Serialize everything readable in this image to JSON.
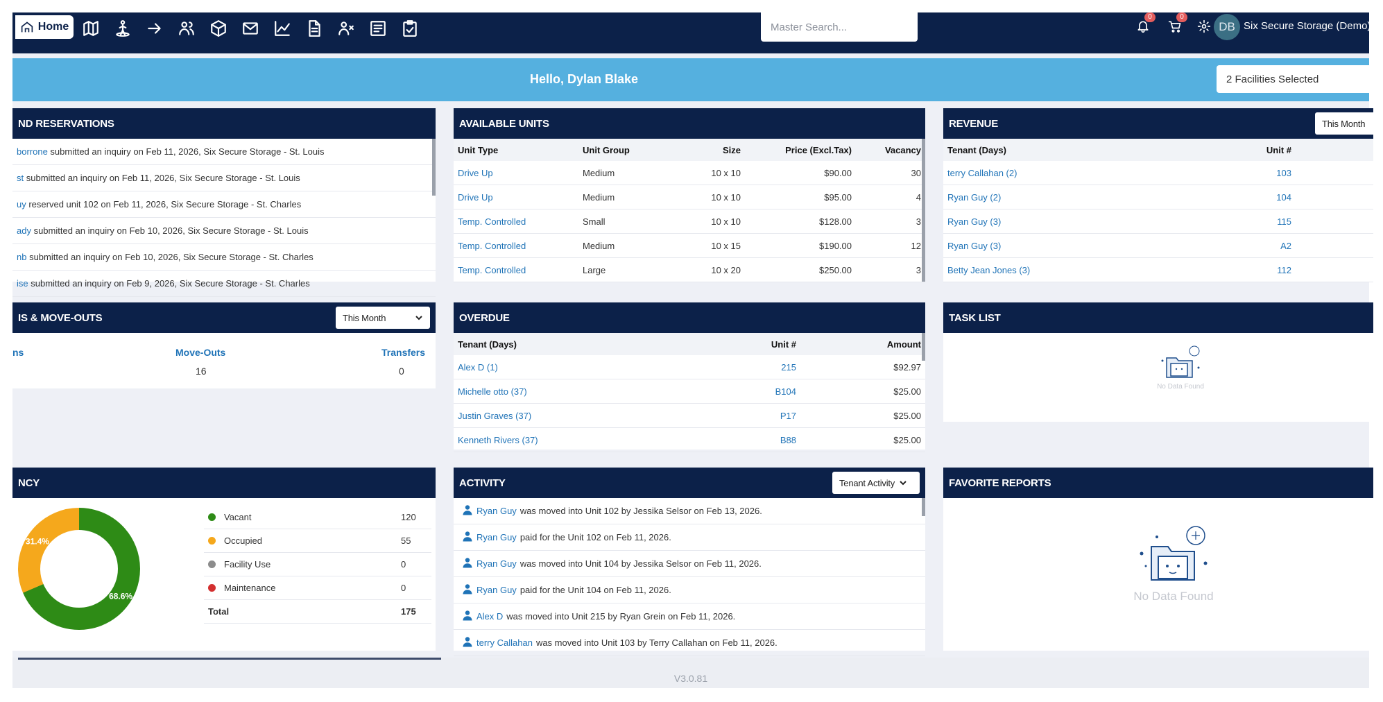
{
  "nav": {
    "home_label": "Home",
    "search_placeholder": "Master Search...",
    "notifications_count": "0",
    "cart_count": "0",
    "avatar_initials": "DB",
    "org_name": "Six Secure Storage (Demo)"
  },
  "hello": {
    "greeting": "Hello, Dylan Blake",
    "facility_select": "2 Facilities Selected"
  },
  "reservations": {
    "title": "ND RESERVATIONS",
    "rows": [
      {
        "name": "borrone",
        "text": " submitted an inquiry on Feb 11, 2026, Six Secure Storage - St. Louis"
      },
      {
        "name": "st",
        "text": " submitted an inquiry on Feb 11, 2026, Six Secure Storage - St. Louis"
      },
      {
        "name": "uy",
        "text": " reserved unit 102 on Feb 11, 2026, Six Secure Storage - St. Charles"
      },
      {
        "name": "ady",
        "text": " submitted an inquiry on Feb 10, 2026, Six Secure Storage - St. Louis"
      },
      {
        "name": "nb",
        "text": " submitted an inquiry on Feb 10, 2026, Six Secure Storage - St. Charles"
      },
      {
        "name": "ise",
        "text": " submitted an inquiry on Feb 9, 2026, Six Secure Storage - St. Charles"
      }
    ]
  },
  "available_units": {
    "title": "AVAILABLE UNITS",
    "headers": [
      "Unit Type",
      "Unit Group",
      "Size",
      "Price (Excl.Tax)",
      "Vacancy"
    ],
    "rows": [
      [
        "Drive Up",
        "Medium",
        "10 x 10",
        "$90.00",
        "30"
      ],
      [
        "Drive Up",
        "Medium",
        "10 x 10",
        "$95.00",
        "4"
      ],
      [
        "Temp. Controlled",
        "Small",
        "10 x 10",
        "$128.00",
        "3"
      ],
      [
        "Temp. Controlled",
        "Medium",
        "10 x 15",
        "$190.00",
        "12"
      ],
      [
        "Temp. Controlled",
        "Large",
        "10 x 20",
        "$250.00",
        "3"
      ]
    ]
  },
  "revenue": {
    "title": "REVENUE",
    "period": "This Month",
    "headers": [
      "Tenant (Days)",
      "Unit #"
    ],
    "rows": [
      [
        "terry Callahan (2)",
        "103"
      ],
      [
        "Ryan Guy (2)",
        "104"
      ],
      [
        "Ryan Guy (3)",
        "115"
      ],
      [
        "Ryan Guy (3)",
        "A2"
      ],
      [
        "Betty Jean Jones (3)",
        "112"
      ]
    ]
  },
  "moves": {
    "title": "IS & MOVE-OUTS",
    "period": "This Month",
    "col1_label": "ns",
    "col2_label": "Move-Outs",
    "col2_value": "16",
    "col3_label": "Transfers",
    "col3_value": "0"
  },
  "overdue": {
    "title": "OVERDUE",
    "headers": [
      "Tenant (Days)",
      "Unit #",
      "Amount"
    ],
    "rows": [
      [
        "Alex D (1)",
        "215",
        "$92.97"
      ],
      [
        "Michelle otto (37)",
        "B104",
        "$25.00"
      ],
      [
        "Justin Graves (37)",
        "P17",
        "$25.00"
      ],
      [
        "Kenneth Rivers (37)",
        "B88",
        "$25.00"
      ]
    ]
  },
  "tasks": {
    "title": "TASK LIST",
    "empty": "No Data Found"
  },
  "occupancy": {
    "title": "NCY",
    "legend": [
      {
        "label": "Vacant",
        "value": "120",
        "color": "#2e8b16"
      },
      {
        "label": "Occupied",
        "value": "55",
        "color": "#f5a81c"
      },
      {
        "label": "Facility Use",
        "value": "0",
        "color": "#8c8c8c"
      },
      {
        "label": "Maintenance",
        "value": "0",
        "color": "#d32f2f"
      }
    ],
    "total_label": "Total",
    "total_value": "175",
    "pct_occupied": "31.4%",
    "pct_vacant": "68.6%"
  },
  "activity": {
    "title": "ACTIVITY",
    "filter": "Tenant Activity",
    "rows": [
      {
        "name": "Ryan Guy",
        "text": "was moved into Unit 102 by Jessika Selsor on Feb 13, 2026."
      },
      {
        "name": "Ryan Guy",
        "text": "paid for the Unit 102 on Feb 11, 2026."
      },
      {
        "name": "Ryan Guy",
        "text": "was moved into Unit 104 by Jessika Selsor on Feb 11, 2026."
      },
      {
        "name": "Ryan Guy",
        "text": "paid for the Unit 104 on Feb 11, 2026."
      },
      {
        "name": "Alex D",
        "text": "was moved into Unit 215 by Ryan Grein on Feb 11, 2026."
      },
      {
        "name": "terry Callahan",
        "text": "was moved into Unit 103 by Terry Callahan on Feb 11, 2026."
      }
    ]
  },
  "favorites": {
    "title": "FAVORITE REPORTS",
    "empty": "No Data Found"
  },
  "footer": {
    "version": "V3.0.81"
  },
  "colors": {
    "navy": "#0c2149",
    "sky": "#55b0df",
    "link": "#1f73b7"
  }
}
